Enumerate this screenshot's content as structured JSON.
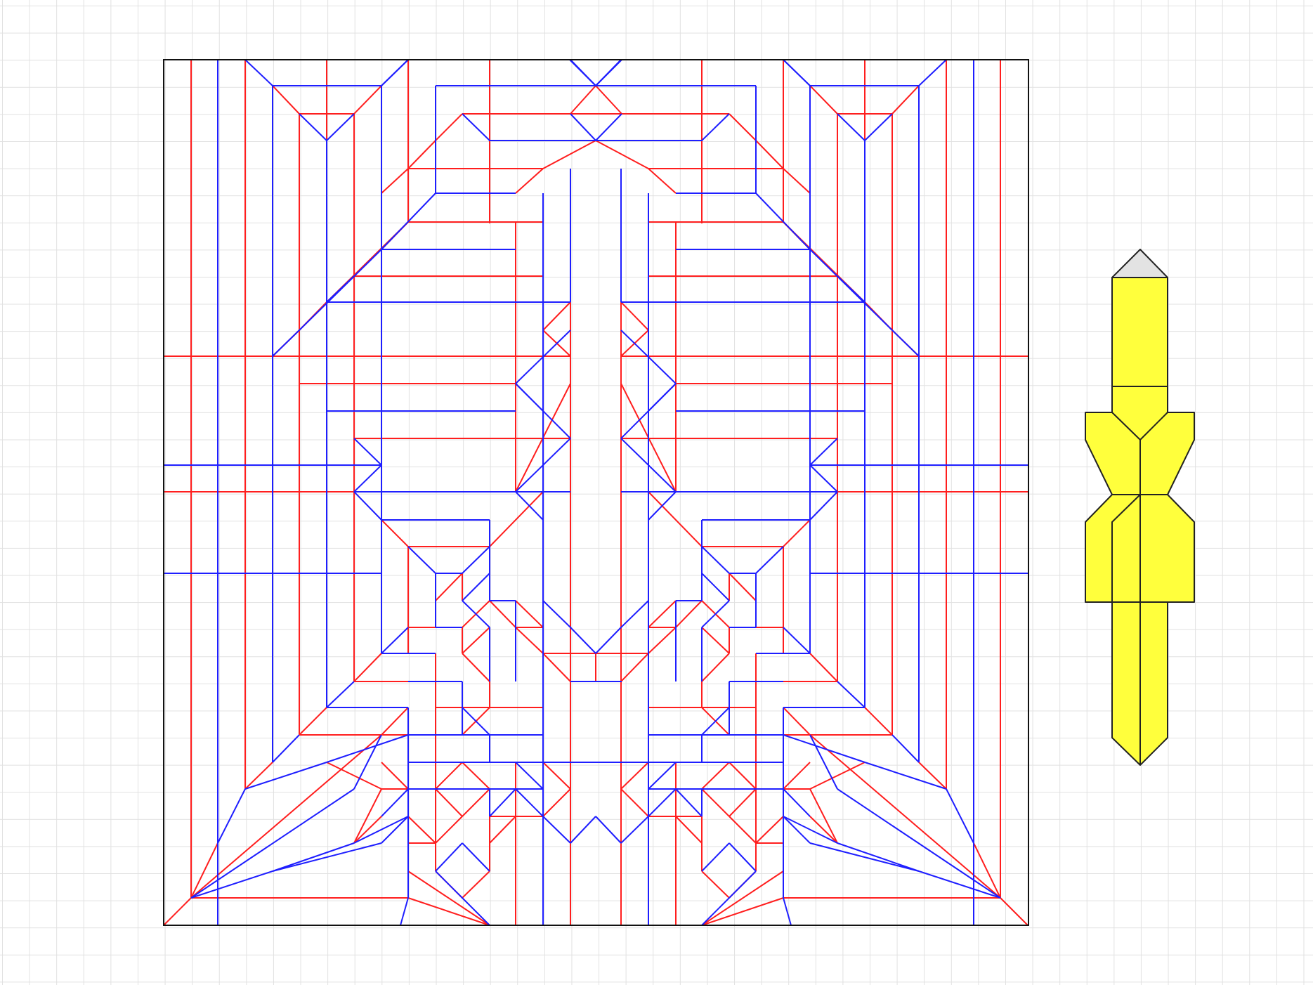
{
  "app": {
    "title": ""
  },
  "colors": {
    "mountain": "#ff1e1e",
    "valley": "#1e1eff",
    "border": "#111111",
    "grid": "#e1e1e1",
    "model_fill": "#ffff3c",
    "model_tip": "#e3e3e3",
    "model_edge": "#222222"
  },
  "crease_pattern": {
    "description_free": true,
    "symmetry": "left-right",
    "line_types": [
      "mountain",
      "valley",
      "border"
    ]
  },
  "folded_preview": {
    "shape": "folded-base-silhouette"
  }
}
